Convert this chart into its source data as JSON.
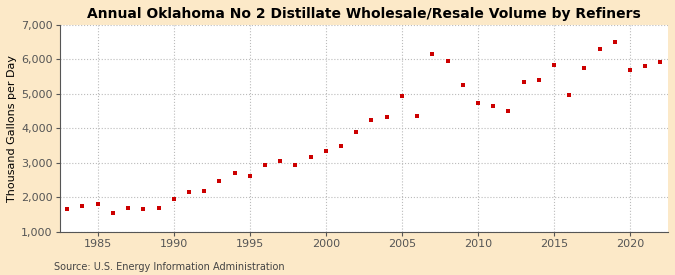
{
  "title": "Annual Oklahoma No 2 Distillate Wholesale/Resale Volume by Refiners",
  "ylabel": "Thousand Gallons per Day",
  "source": "Source: U.S. Energy Information Administration",
  "fig_background_color": "#fce9c8",
  "plot_background_color": "#ffffff",
  "marker_color": "#cc0000",
  "grid_color": "#bbbbbb",
  "ylim": [
    1000,
    7000
  ],
  "yticks": [
    1000,
    2000,
    3000,
    4000,
    5000,
    6000,
    7000
  ],
  "ytick_labels": [
    "1,000",
    "2,000",
    "3,000",
    "4,000",
    "5,000",
    "6,000",
    "7,000"
  ],
  "xticks": [
    1985,
    1990,
    1995,
    2000,
    2005,
    2010,
    2015,
    2020
  ],
  "xlim": [
    1982.5,
    2022.5
  ],
  "years": [
    1983,
    1984,
    1985,
    1986,
    1987,
    1988,
    1989,
    1990,
    1991,
    1992,
    1993,
    1994,
    1995,
    1996,
    1997,
    1998,
    1999,
    2000,
    2001,
    2002,
    2003,
    2004,
    2005,
    2006,
    2007,
    2008,
    2009,
    2010,
    2011,
    2012,
    2013,
    2014,
    2015,
    2016,
    2017,
    2018,
    2019,
    2020,
    2021,
    2022
  ],
  "values": [
    1650,
    1750,
    1800,
    1560,
    1680,
    1650,
    1680,
    1950,
    2150,
    2180,
    2480,
    2700,
    2620,
    2950,
    3060,
    2940,
    3160,
    3350,
    3490,
    3900,
    4250,
    4330,
    4950,
    4350,
    6150,
    5950,
    5250,
    4750,
    4650,
    4500,
    5340,
    5390,
    5850,
    4980,
    5750,
    6300,
    6500,
    5680,
    5820,
    5930
  ],
  "title_fontsize": 10,
  "tick_fontsize": 8,
  "ylabel_fontsize": 8,
  "source_fontsize": 7
}
